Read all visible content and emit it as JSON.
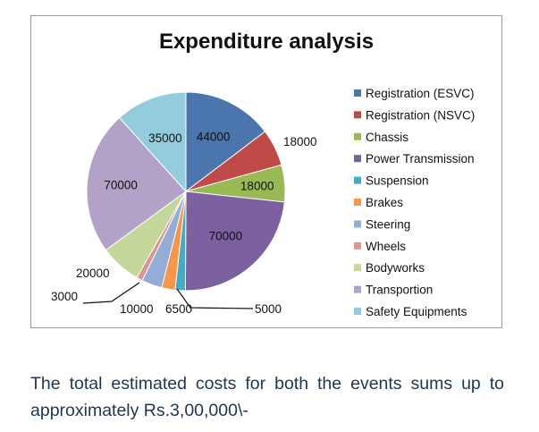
{
  "chart_data": {
    "type": "pie",
    "title": "Expenditure analysis",
    "categories": [
      "Registration (ESVC)",
      "Registration (NSVC)",
      "Chassis",
      "Power Transmission",
      "Suspension",
      "Brakes",
      "Steering",
      "Wheels",
      "Bodyworks",
      "Transportion",
      "Safety Equipments"
    ],
    "values": [
      44000,
      18000,
      18000,
      70000,
      5000,
      6500,
      10000,
      3000,
      20000,
      70000,
      35000
    ],
    "data_labels": [
      "44000",
      "18000",
      "18000",
      "70000",
      "5000",
      "6500",
      "10000",
      "3000",
      "20000",
      "70000",
      "35000"
    ],
    "colors": [
      "#4a76ad",
      "#be4b48",
      "#98b954",
      "#7d60a0",
      "#46aac5",
      "#f79646",
      "#94add7",
      "#d99694",
      "#c4d79b",
      "#b2a2c7",
      "#93cddd"
    ],
    "legend_position": "right",
    "start_angle": "12 o'clock, clockwise"
  },
  "caption": "The total estimated costs for both the events sums up to approximately Rs.3,00,000\\-"
}
